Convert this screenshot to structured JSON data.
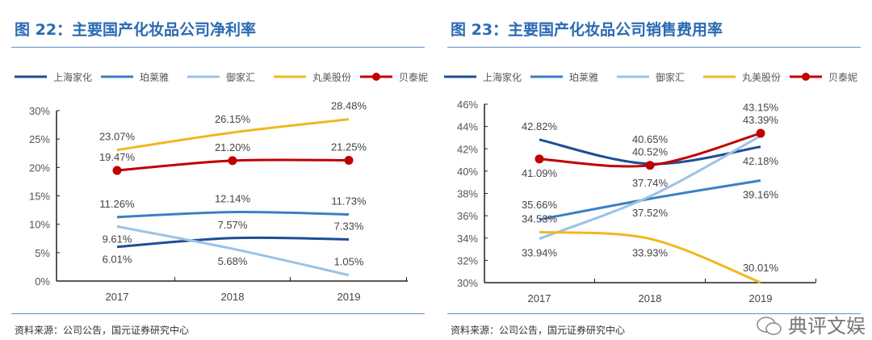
{
  "charts": [
    {
      "title": "图 22：主要国产化妆品公司净利率",
      "source": "资料来源：公司公告，国元证券研究中心"
    },
    {
      "title": "图 23：主要国产化妆品公司销售费用率",
      "source": "资料来源：公司公告，国元证券研究中心"
    }
  ],
  "watermark": "典评文娱",
  "chart_data": [
    {
      "type": "line",
      "title": "图 22：主要国产化妆品公司净利率",
      "categories": [
        "2017",
        "2018",
        "2019"
      ],
      "ylim": [
        0,
        30
      ],
      "yticks": [
        "0%",
        "5%",
        "10%",
        "15%",
        "20%",
        "25%",
        "30%"
      ],
      "ytick_values": [
        0,
        5,
        10,
        15,
        20,
        25,
        30
      ],
      "legend": "top",
      "grid": false,
      "series": [
        {
          "name": "上海家化",
          "color": "#1f4e96",
          "values": [
            6.01,
            7.57,
            7.33
          ],
          "labels": [
            "6.01%",
            "7.57%",
            "7.33%"
          ],
          "marker": false
        },
        {
          "name": "珀莱雅",
          "color": "#3b7fc6",
          "values": [
            11.26,
            12.14,
            11.73
          ],
          "labels": [
            "11.26%",
            "12.14%",
            "11.73%"
          ],
          "marker": false
        },
        {
          "name": "御家汇",
          "color": "#9cc2e6",
          "values": [
            9.61,
            5.68,
            1.05
          ],
          "labels": [
            "9.61%",
            "5.68%",
            "1.05%"
          ],
          "marker": false
        },
        {
          "name": "丸美股份",
          "color": "#f2b71f",
          "values": [
            23.07,
            26.15,
            28.48
          ],
          "labels": [
            "23.07%",
            "26.15%",
            "28.48%"
          ],
          "marker": false
        },
        {
          "name": "贝泰妮",
          "color": "#c00000",
          "values": [
            19.47,
            21.2,
            21.25
          ],
          "labels": [
            "19.47%",
            "21.20%",
            "21.25%"
          ],
          "marker": true
        }
      ]
    },
    {
      "type": "line",
      "title": "图 23：主要国产化妆品公司销售费用率",
      "categories": [
        "2017",
        "2018",
        "2019"
      ],
      "ylim": [
        30,
        46
      ],
      "yticks": [
        "30%",
        "32%",
        "34%",
        "36%",
        "38%",
        "40%",
        "42%",
        "44%",
        "46%"
      ],
      "ytick_values": [
        30,
        32,
        34,
        36,
        38,
        40,
        42,
        44,
        46
      ],
      "legend": "top",
      "grid": false,
      "series": [
        {
          "name": "上海家化",
          "color": "#1f4e96",
          "values": [
            42.82,
            40.65,
            42.18
          ],
          "labels": [
            "42.82%",
            "40.65%",
            "42.18%"
          ],
          "marker": false
        },
        {
          "name": "珀莱雅",
          "color": "#3b7fc6",
          "values": [
            35.66,
            37.52,
            39.16
          ],
          "labels": [
            "35.66%",
            "37.52%",
            "39.16%"
          ],
          "marker": false
        },
        {
          "name": "御家汇",
          "color": "#9cc2e6",
          "values": [
            33.94,
            37.74,
            43.15
          ],
          "labels": [
            "33.94%",
            "37.74%",
            "43.15%"
          ],
          "marker": false
        },
        {
          "name": "丸美股份",
          "color": "#f2b71f",
          "values": [
            34.53,
            33.93,
            30.01
          ],
          "labels": [
            "34.53%",
            "33.93%",
            "30.01%"
          ],
          "marker": false
        },
        {
          "name": "贝泰妮",
          "color": "#c00000",
          "values": [
            41.09,
            40.52,
            43.39
          ],
          "labels": [
            "41.09%",
            "40.52%",
            "43.39%"
          ],
          "marker": true
        }
      ]
    }
  ]
}
